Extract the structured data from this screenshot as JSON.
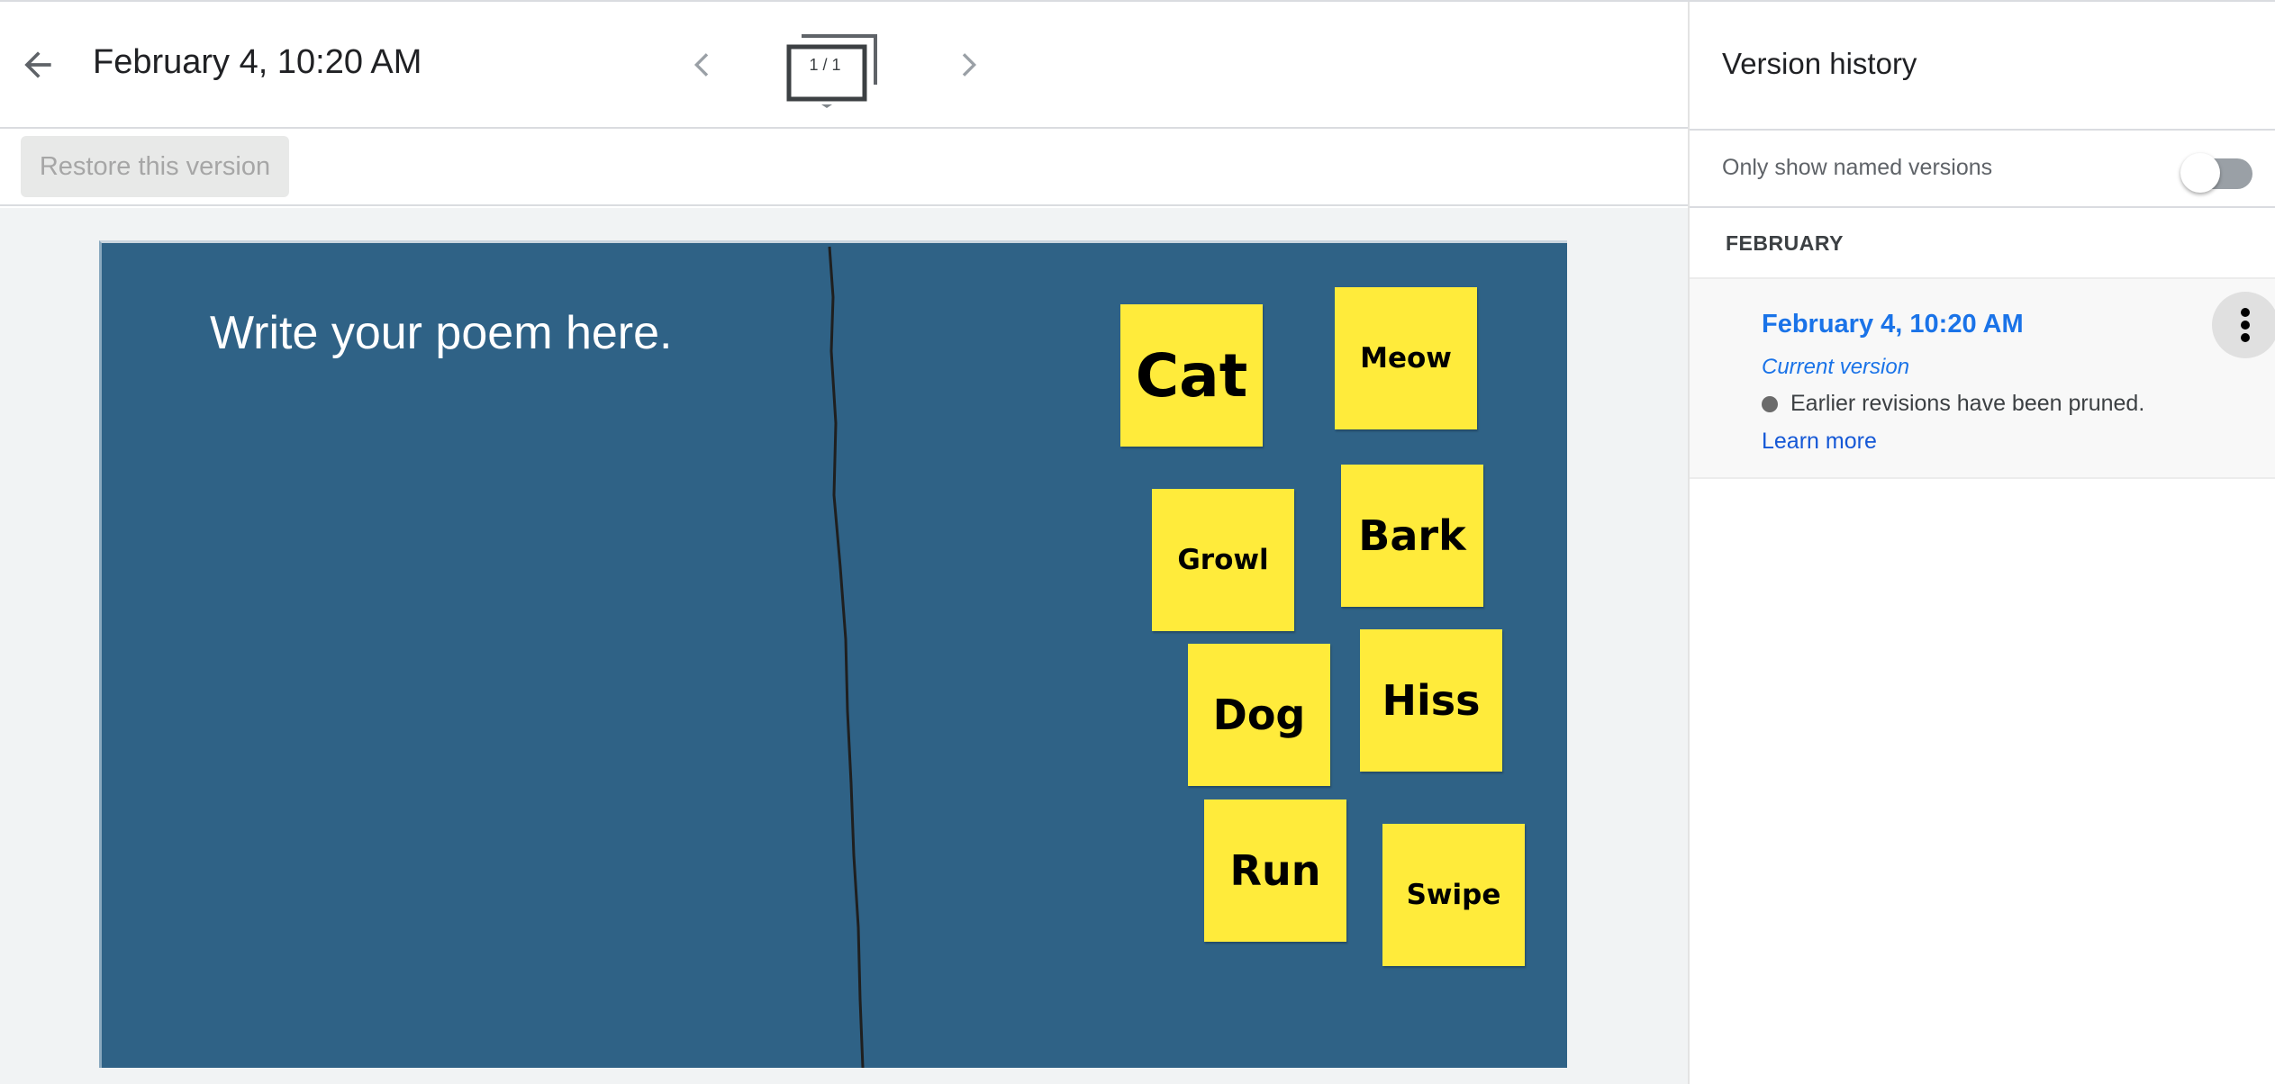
{
  "header": {
    "title": "February 4, 10:20 AM",
    "slide_counter": "1 / 1"
  },
  "toolbar": {
    "restore_label": "Restore this version"
  },
  "slide": {
    "prompt": "Write your poem here.",
    "background_color": "#2f6286",
    "sticky_color": "#ffeb3b",
    "stickies": [
      "Cat",
      "Meow",
      "Growl",
      "Bark",
      "Dog",
      "Hiss",
      "Run",
      "Swipe"
    ]
  },
  "panel": {
    "title": "Version history",
    "toggle_label": "Only show named versions",
    "toggle_on": false,
    "month": "FEBRUARY",
    "versions": [
      {
        "title": "February 4, 10:20 AM",
        "subtitle": "Current version",
        "note": "Earlier revisions have been pruned.",
        "link": "Learn more"
      }
    ]
  },
  "colors": {
    "accent": "#1a73e8"
  }
}
